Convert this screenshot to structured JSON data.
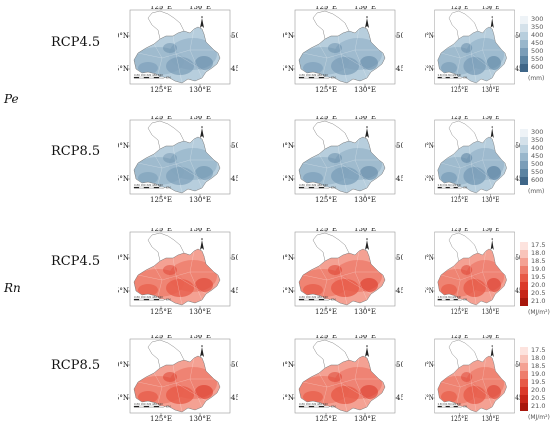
{
  "map_labels": {
    "lon_left": "125°E",
    "lon_right": "130°E",
    "lat_top": "50°N",
    "lat_bottom": "45°N",
    "scale_numbers": "0  80 160  320  480  640",
    "scale_unit": "KM"
  },
  "variables": [
    {
      "label": "Pe",
      "legend": {
        "unit": "(mm)",
        "ticks": [
          "300",
          "350",
          "400",
          "450",
          "500",
          "550",
          "600"
        ],
        "colors": [
          "#eef3f7",
          "#d4e1ea",
          "#b7cedd",
          "#98b6cb",
          "#7a9db8",
          "#5b83a2",
          "#3f6688"
        ]
      }
    },
    {
      "label": "Rn",
      "legend": {
        "unit": "(MJ/m²)",
        "ticks": [
          "17.5",
          "18.0",
          "18.5",
          "19.0",
          "19.5",
          "20.0",
          "20.5",
          "21.0"
        ],
        "colors": [
          "#fde3de",
          "#f9c4ba",
          "#f4a193",
          "#ee7d6c",
          "#e75a47",
          "#db3a2a",
          "#c62518",
          "#a8170c"
        ]
      }
    }
  ],
  "rows": [
    {
      "scenario": "RCP4.5",
      "variable_index": 0,
      "palette": [
        "#b7cedd",
        "#98b6cb",
        "#7a9db8",
        "#5b83a2"
      ],
      "panels": [
        {
          "intensity": 0.45,
          "legend": false
        },
        {
          "intensity": 0.45,
          "legend": false
        },
        {
          "intensity": 0.55,
          "legend": true
        }
      ]
    },
    {
      "scenario": "RCP8.5",
      "variable_index": 0,
      "palette": [
        "#b7cedd",
        "#98b6cb",
        "#7a9db8",
        "#5b83a2"
      ],
      "panels": [
        {
          "intensity": 0.35,
          "legend": false
        },
        {
          "intensity": 0.5,
          "legend": false
        },
        {
          "intensity": 0.7,
          "legend": true
        }
      ]
    },
    {
      "scenario": "RCP4.5",
      "variable_index": 1,
      "palette": [
        "#f4a193",
        "#ee7d6c",
        "#e75a47",
        "#db3a2a"
      ],
      "panels": [
        {
          "intensity": 0.5,
          "legend": false
        },
        {
          "intensity": 0.6,
          "legend": false
        },
        {
          "intensity": 0.55,
          "legend": true
        }
      ]
    },
    {
      "scenario": "RCP8.5",
      "variable_index": 1,
      "palette": [
        "#f4a193",
        "#ee7d6c",
        "#e75a47",
        "#db3a2a"
      ],
      "panels": [
        {
          "intensity": 0.6,
          "legend": false
        },
        {
          "intensity": 0.55,
          "legend": false
        },
        {
          "intensity": 0.5,
          "legend": true
        }
      ]
    }
  ]
}
